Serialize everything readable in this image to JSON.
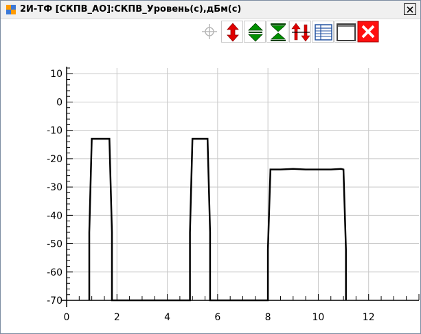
{
  "window": {
    "title": "2И-ТФ [СКПВ_АО]:СКПВ_Уровень(с),дБм(с)"
  },
  "toolbar": {
    "buttons": [
      {
        "name": "crosshair-button",
        "icon": "crosshair-icon",
        "enabled": false
      },
      {
        "name": "scale-vertical-button",
        "icon": "vertical-arrows-icon",
        "color": "#e00000"
      },
      {
        "name": "stretch-vertical-button",
        "icon": "expand-vertical-icon",
        "color": "#008000"
      },
      {
        "name": "compress-vertical-button",
        "icon": "compress-vertical-icon",
        "color": "#008000"
      },
      {
        "name": "swap-axes-button",
        "icon": "up-down-arrows-icon",
        "color": "#e00000"
      },
      {
        "name": "table-view-button",
        "icon": "table-icon",
        "color": "#2050a0"
      },
      {
        "name": "window-button",
        "icon": "window-icon",
        "color": "#606060"
      },
      {
        "name": "close-chart-button",
        "icon": "close-icon",
        "color": "#ff0000"
      }
    ]
  },
  "chart_data": {
    "type": "line",
    "title": "",
    "xlabel": "",
    "ylabel": "",
    "xlim": [
      0,
      14
    ],
    "ylim": [
      -70,
      12
    ],
    "x_ticks": [
      0,
      2,
      4,
      6,
      8,
      10,
      12
    ],
    "y_ticks": [
      10,
      0,
      -10,
      -20,
      -30,
      -40,
      -50,
      -60,
      -70
    ],
    "grid": true,
    "line_color": "#000000",
    "series": [
      {
        "points": [
          [
            0.9,
            -70
          ],
          [
            0.9,
            -46
          ],
          [
            1.0,
            -13
          ],
          [
            1.7,
            -13
          ],
          [
            1.8,
            -46
          ],
          [
            1.8,
            -70
          ],
          [
            4.9,
            -70
          ],
          [
            4.9,
            -46
          ],
          [
            5.0,
            -13
          ],
          [
            5.6,
            -13
          ],
          [
            5.7,
            -46
          ],
          [
            5.7,
            -70
          ],
          [
            8.0,
            -70
          ],
          [
            8.0,
            -52
          ],
          [
            8.1,
            -23.8
          ],
          [
            8.5,
            -23.8
          ],
          [
            9.0,
            -23.6
          ],
          [
            9.5,
            -23.8
          ],
          [
            10.0,
            -23.8
          ],
          [
            10.5,
            -23.8
          ],
          [
            10.9,
            -23.6
          ],
          [
            11.0,
            -23.8
          ],
          [
            11.1,
            -52
          ],
          [
            11.1,
            -70
          ]
        ]
      }
    ]
  }
}
